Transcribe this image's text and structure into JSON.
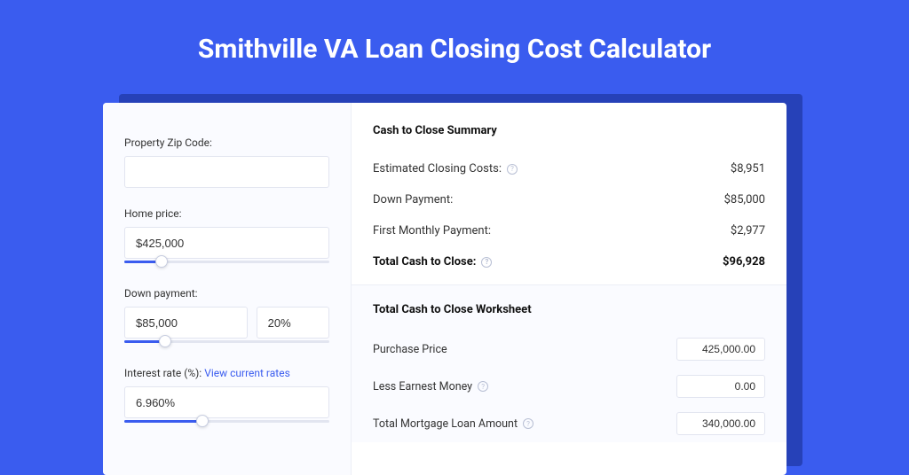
{
  "colors": {
    "page_bg": "#3a5cef",
    "shadow_bg": "#2641b8",
    "card_bg": "#ffffff",
    "panel_bg": "#fafbff",
    "border": "#e2e5f0",
    "link": "#3a5cef",
    "text": "#333333"
  },
  "title": "Smithville VA Loan Closing Cost Calculator",
  "inputs": {
    "zip": {
      "label": "Property Zip Code:",
      "value": ""
    },
    "home_price": {
      "label": "Home price:",
      "value": "$425,000",
      "slider_pct": 18
    },
    "down_payment": {
      "label": "Down payment:",
      "value": "$85,000",
      "pct": "20%",
      "slider_pct": 20
    },
    "interest": {
      "label": "Interest rate (%):",
      "link_text": "View current rates",
      "value": "6.960%",
      "slider_pct": 38
    }
  },
  "summary": {
    "title": "Cash to Close Summary",
    "rows": [
      {
        "label": "Estimated Closing Costs:",
        "help": true,
        "value": "$8,951",
        "bold": false
      },
      {
        "label": "Down Payment:",
        "help": false,
        "value": "$85,000",
        "bold": false
      },
      {
        "label": "First Monthly Payment:",
        "help": false,
        "value": "$2,977",
        "bold": false
      },
      {
        "label": "Total Cash to Close:",
        "help": true,
        "value": "$96,928",
        "bold": true
      }
    ]
  },
  "worksheet": {
    "title": "Total Cash to Close Worksheet",
    "rows": [
      {
        "label": "Purchase Price",
        "help": false,
        "value": "425,000.00"
      },
      {
        "label": "Less Earnest Money",
        "help": true,
        "value": "0.00"
      },
      {
        "label": "Total Mortgage Loan Amount",
        "help": true,
        "value": "340,000.00"
      }
    ]
  }
}
